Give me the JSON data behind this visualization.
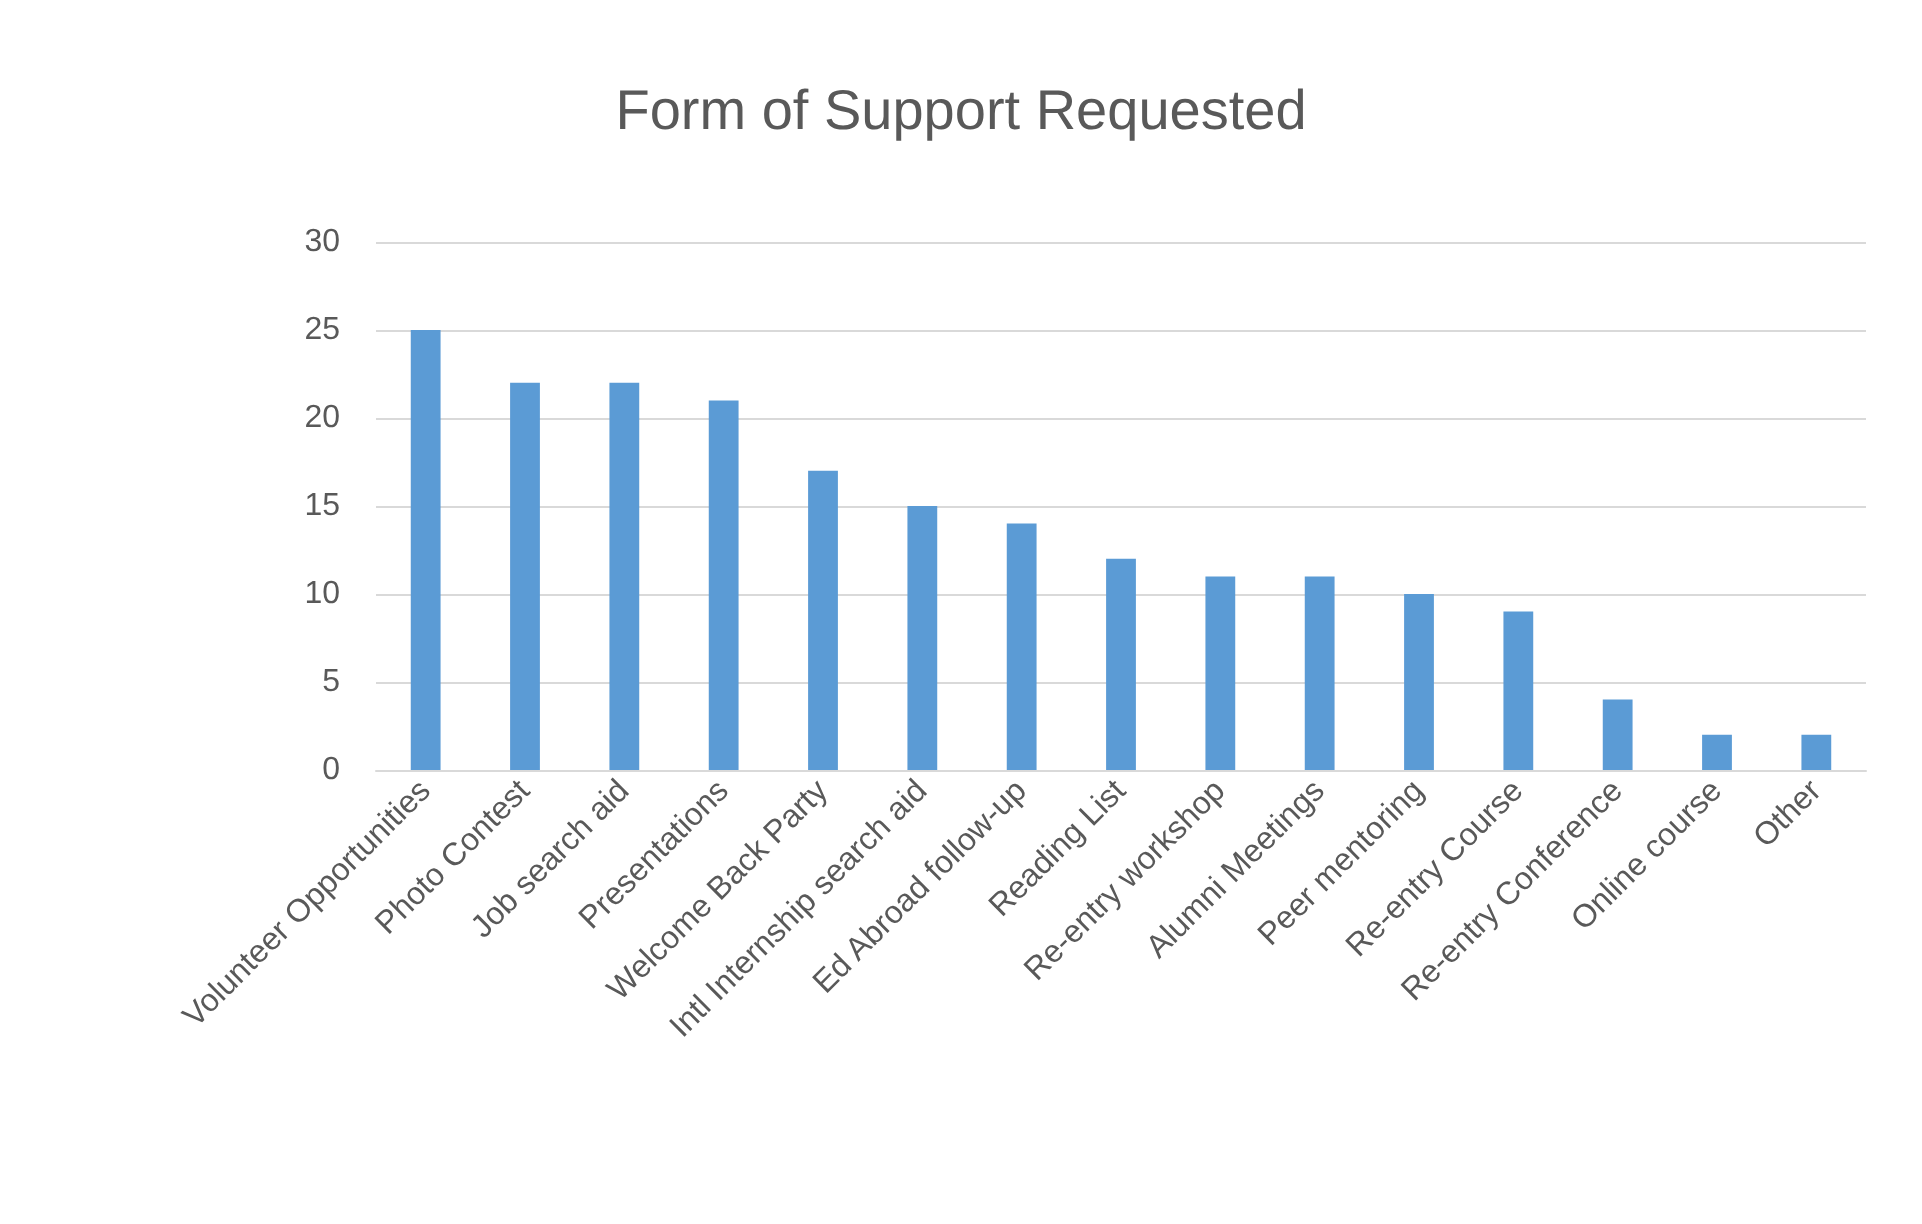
{
  "chart_data": {
    "type": "bar",
    "title": "Form of Support Requested",
    "categories": [
      "Volunteer Opportunities",
      "Photo Contest",
      "Job search aid",
      "Presentations",
      "Welcome Back Party",
      "Intl Internship search aid",
      "Ed Abroad follow-up",
      "Reading List",
      "Re-entry workshop",
      "Alumni Meetings",
      "Peer mentoring",
      "Re-entry Course",
      "Re-entry Conference",
      "Online course",
      "Other"
    ],
    "values": [
      25,
      22,
      22,
      21,
      17,
      15,
      14,
      12,
      11,
      11,
      10,
      9,
      4,
      2,
      2
    ],
    "color": "#5b9bd5",
    "ylim": [
      0,
      30
    ],
    "yticks": [
      0,
      5,
      10,
      15,
      20,
      25,
      30
    ],
    "grid": "y"
  }
}
